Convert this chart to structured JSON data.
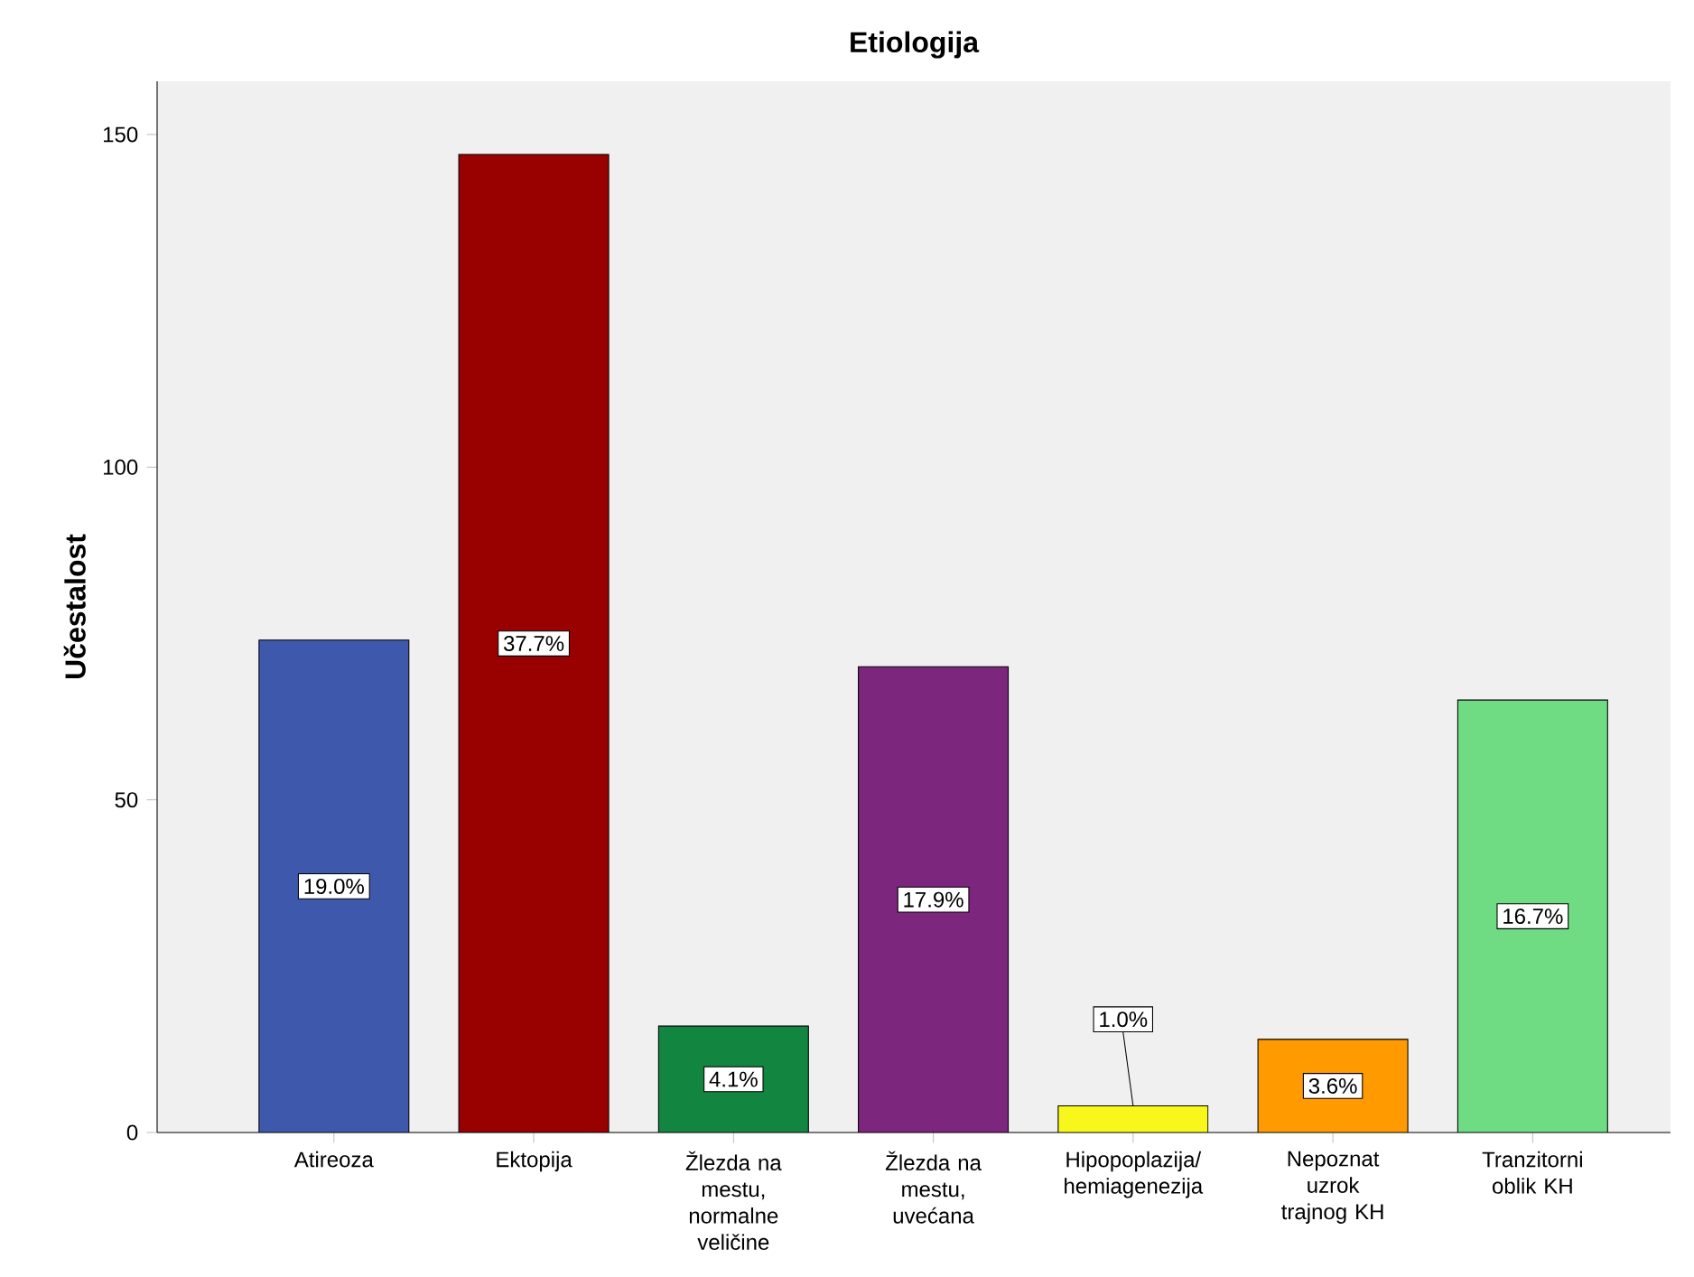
{
  "chart_data": {
    "type": "bar",
    "title": "Etiologija",
    "ylabel": "Učestalost",
    "categories": [
      "Atireoza",
      "Ektopija",
      "Žlezda na mestu, normalne veličine",
      "Žlezda na mestu, uvećana",
      "Hipopoplazija/ hemiagenezija",
      "Nepoznat uzrok trajnog KH",
      "Tranzitorni oblik KH"
    ],
    "values": [
      74,
      147,
      16,
      70,
      4,
      14,
      65
    ],
    "colors": [
      "#3e58ac",
      "#990000",
      "#128540",
      "#7c277d",
      "#f7f71b",
      "#ff9a00",
      "#6fdc84"
    ],
    "annotations": [
      {
        "text": "19.0%",
        "x": "Atireoza",
        "y": 37
      },
      {
        "text": "37.7%",
        "x": "Ektopija",
        "y": 73.5
      },
      {
        "text": "4.1%",
        "x": "Žlezda na mestu, normalne veličine",
        "y": 8
      },
      {
        "text": "17.9%",
        "x": "Žlezda na mestu, uvećana",
        "y": 35
      },
      {
        "text": "1.0%",
        "x": "Hipopoplazija/ hemiagenezija",
        "y": 4
      },
      {
        "text": "3.6%",
        "x": "Nepoznat uzrok trajnog KH",
        "y": 7
      },
      {
        "text": "16.7%",
        "x": "Tranzitorni oblik KH",
        "y": 32.5
      }
    ],
    "ylim": [
      0,
      158
    ],
    "yticks": [
      0,
      50,
      100,
      150
    ],
    "grid": false
  }
}
